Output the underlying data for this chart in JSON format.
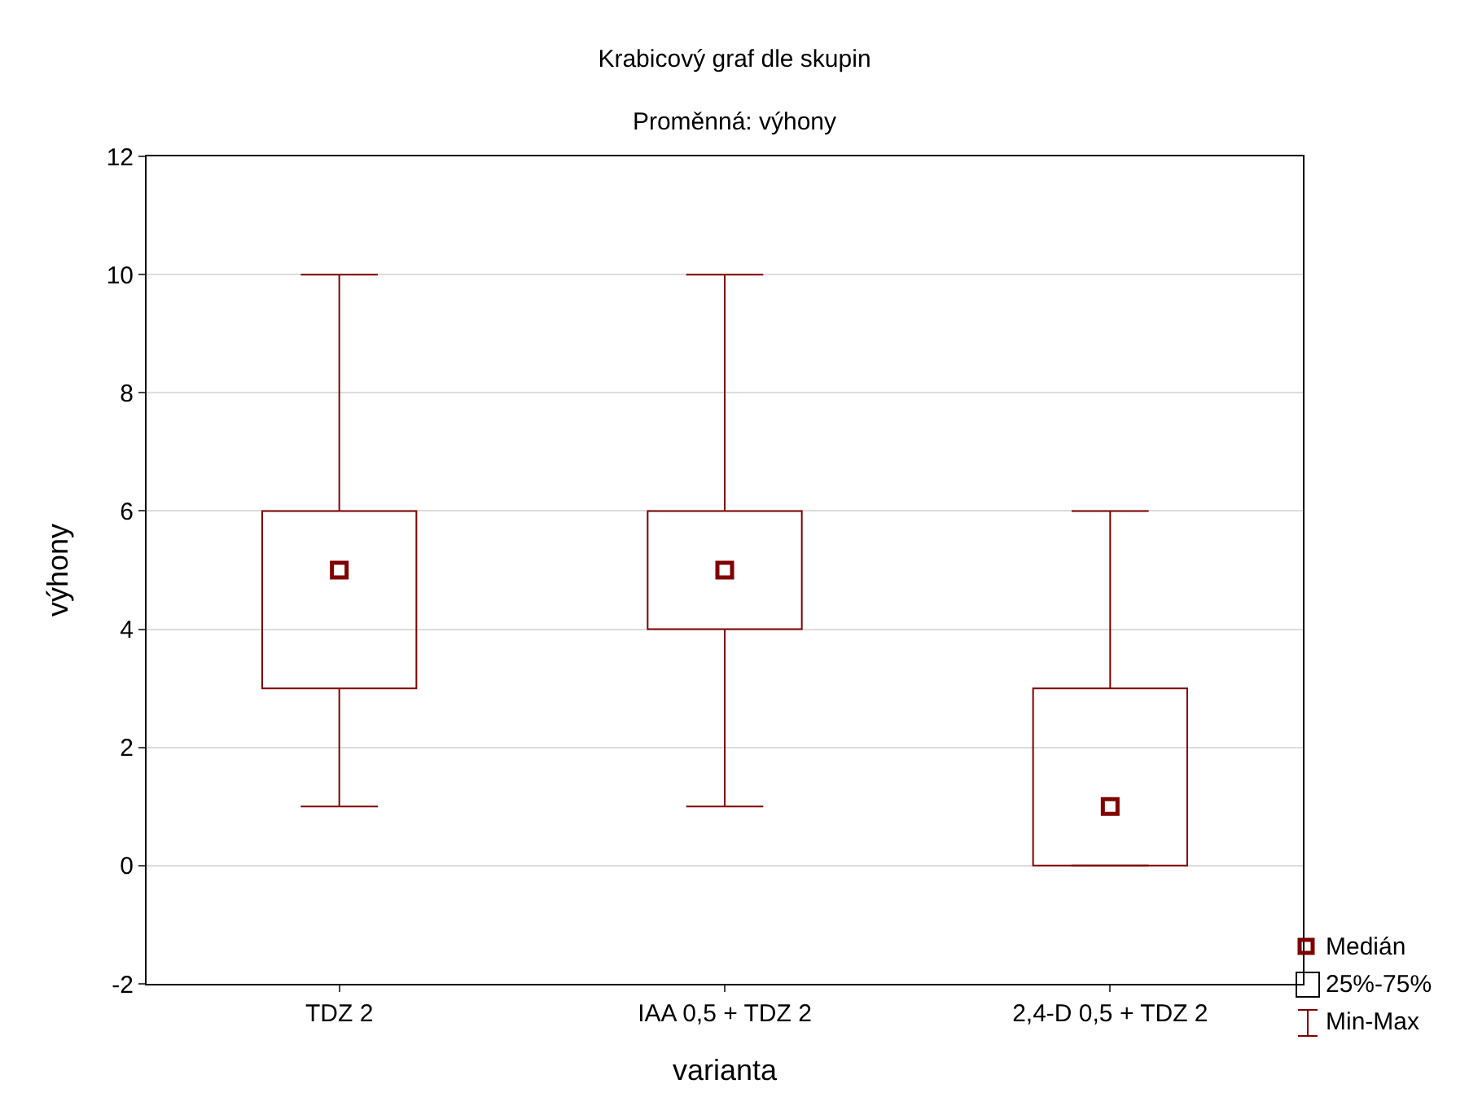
{
  "chart_data": {
    "type": "box",
    "title": "Krabicový graf dle skupin",
    "subtitle": "Proměnná: výhony",
    "xlabel": "varianta",
    "ylabel": "výhony",
    "categories": [
      "TDZ 2",
      "IAA 0,5 + TDZ 2",
      "2,4-D 0,5 + TDZ 2"
    ],
    "boxes": [
      {
        "low": 1,
        "q1": 3,
        "median": 5,
        "q3": 6,
        "high": 10
      },
      {
        "low": 1,
        "q1": 4,
        "median": 5,
        "q3": 6,
        "high": 10
      },
      {
        "low": 0,
        "q1": 0,
        "median": 1,
        "q3": 3,
        "high": 6
      }
    ],
    "color": "#800000",
    "marker": "square",
    "ylim": [
      -2,
      12
    ],
    "yticks": [
      -2,
      0,
      2,
      4,
      6,
      8,
      10,
      12
    ],
    "grid": "y",
    "annotations": [
      "Medián",
      "25%-75%",
      "Min-Max"
    ]
  }
}
